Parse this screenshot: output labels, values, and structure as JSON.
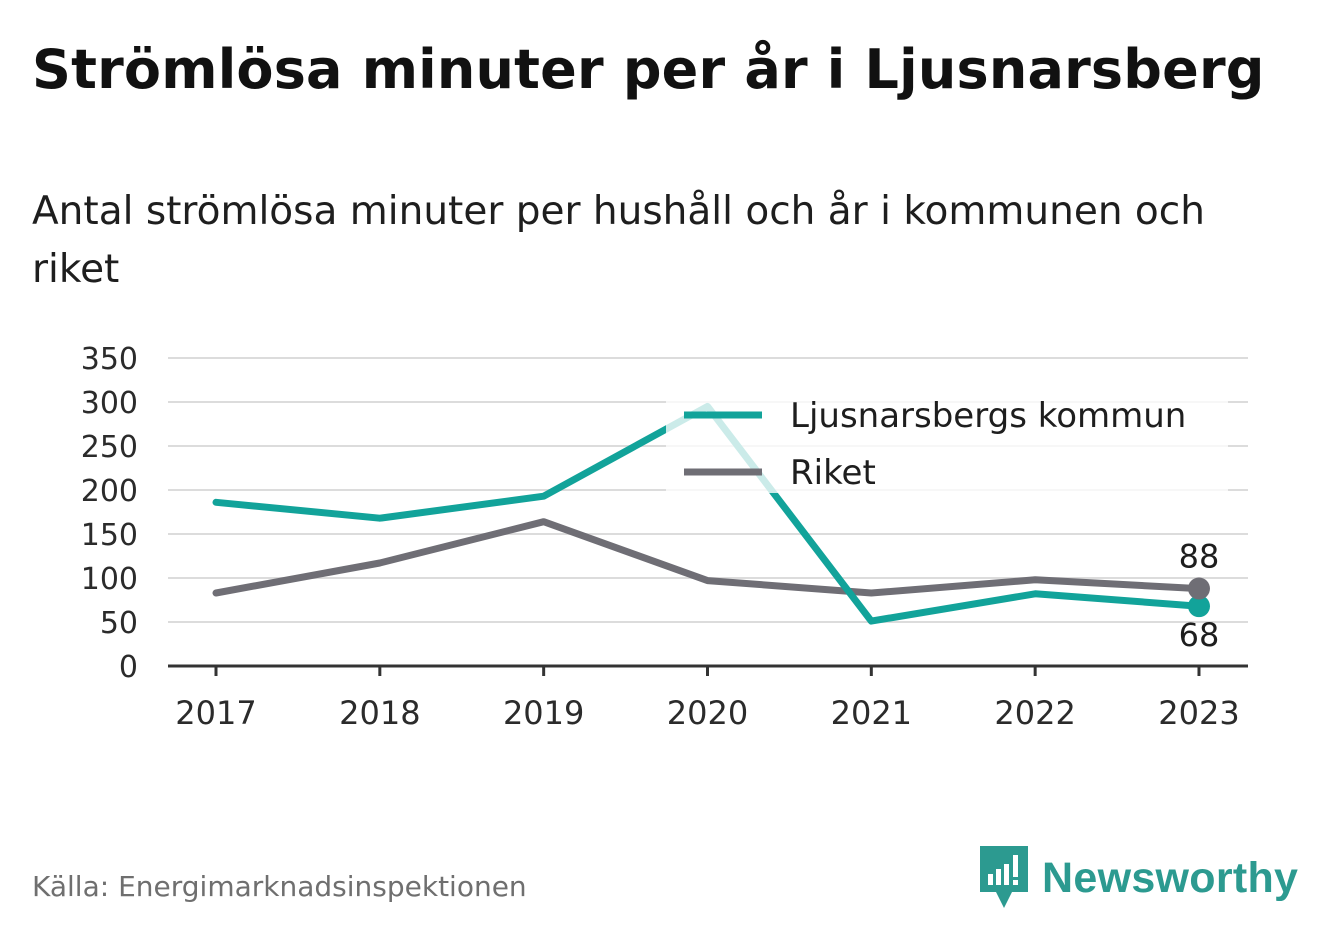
{
  "title": "Strömlösa minuter per år i Ljusnarsberg",
  "subtitle": "Antal strömlösa minuter per hushåll och år i kommunen och riket",
  "source": "Källa: Energimarknadsinspektionen",
  "brand": {
    "name": "Newsworthy",
    "icon": "newsworthy-logo-icon",
    "color": "#2c9a90"
  },
  "chart_data": {
    "type": "line",
    "x": [
      "2017",
      "2018",
      "2019",
      "2020",
      "2021",
      "2022",
      "2023"
    ],
    "ylim": [
      0,
      350
    ],
    "yticks": [
      "0",
      "50",
      "100",
      "150",
      "200",
      "250",
      "300",
      "350"
    ],
    "grid": true,
    "legend_position": "top-right",
    "series": [
      {
        "name": "Ljusnarsbergs kommun",
        "color": "#12a39a",
        "values": [
          186,
          168,
          193,
          295,
          51,
          82,
          68
        ],
        "end_label": "68"
      },
      {
        "name": "Riket",
        "color": "#6f6e75",
        "values": [
          83,
          117,
          164,
          97,
          83,
          98,
          88
        ],
        "end_label": "88"
      }
    ]
  }
}
